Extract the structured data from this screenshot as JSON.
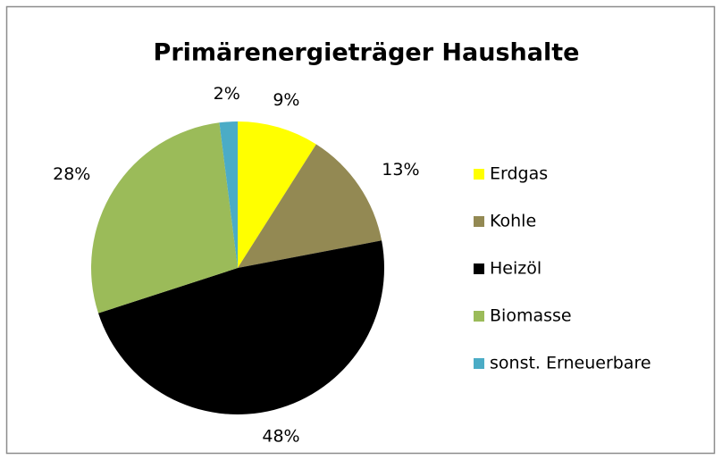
{
  "chart_data": {
    "type": "pie",
    "title": "Primärenergieträger Haushalte",
    "categories": [
      "Erdgas",
      "Kohle",
      "Heizöl",
      "Biomasse",
      "sonst. Erneuerbare"
    ],
    "values": [
      9,
      13,
      48,
      28,
      2
    ],
    "value_labels": [
      "9%",
      "13%",
      "48%",
      "28%",
      "2%"
    ],
    "colors": [
      "#ffff00",
      "#938953",
      "#000000",
      "#9bbb59",
      "#4bacc6"
    ],
    "legend": "right"
  }
}
